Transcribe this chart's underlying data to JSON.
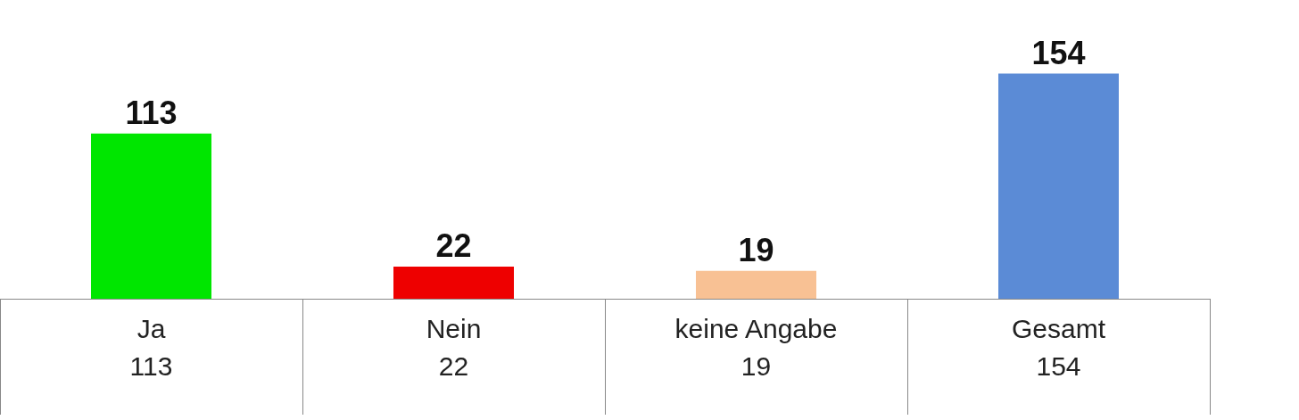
{
  "chart_data": {
    "type": "bar",
    "categories": [
      "Ja\n113",
      "Nein\n22",
      "keine Angabe\n19",
      "Gesamt\n154"
    ],
    "values": [
      113,
      22,
      19,
      154
    ],
    "colors": [
      "#00e600",
      "#ee0000",
      "#f8c194",
      "#5b8bd6"
    ],
    "data_labels": true,
    "grid": false
  }
}
